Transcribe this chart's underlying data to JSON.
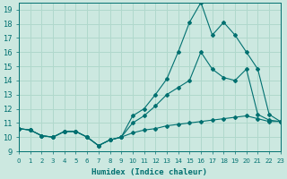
{
  "xlabel": "Humidex (Indice chaleur)",
  "xlim": [
    0,
    23
  ],
  "ylim": [
    9,
    19.5
  ],
  "yticks": [
    9,
    10,
    11,
    12,
    13,
    14,
    15,
    16,
    17,
    18,
    19
  ],
  "xticks": [
    0,
    1,
    2,
    3,
    4,
    5,
    6,
    7,
    8,
    9,
    10,
    11,
    12,
    13,
    14,
    15,
    16,
    17,
    18,
    19,
    20,
    21,
    22,
    23
  ],
  "bg_color": "#cce8e0",
  "line_color": "#007070",
  "grid_color": "#b0d8cc",
  "line1_x": [
    0,
    1,
    2,
    3,
    4,
    5,
    6,
    7,
    8,
    9,
    10,
    11,
    12,
    13,
    14,
    15,
    16,
    17,
    18,
    19,
    20,
    21,
    22,
    23
  ],
  "line1_y": [
    10.6,
    10.5,
    10.1,
    10.0,
    10.4,
    10.4,
    10.0,
    9.4,
    9.8,
    10.0,
    10.3,
    10.5,
    10.6,
    10.8,
    10.9,
    11.0,
    11.1,
    11.2,
    11.3,
    11.4,
    11.5,
    11.3,
    11.1,
    11.1
  ],
  "line2_x": [
    0,
    1,
    2,
    3,
    4,
    5,
    6,
    7,
    8,
    9,
    10,
    11,
    12,
    13,
    14,
    15,
    16,
    17,
    18,
    19,
    20,
    21,
    22,
    23
  ],
  "line2_y": [
    10.6,
    10.5,
    10.1,
    10.0,
    10.4,
    10.4,
    10.0,
    9.4,
    9.8,
    10.0,
    11.0,
    11.5,
    12.2,
    13.0,
    13.5,
    14.0,
    16.0,
    14.8,
    14.2,
    14.0,
    14.8,
    11.6,
    11.2,
    11.1
  ],
  "line3_x": [
    0,
    1,
    2,
    3,
    4,
    5,
    6,
    7,
    8,
    9,
    10,
    11,
    12,
    13,
    14,
    15,
    16,
    17,
    18,
    19,
    20,
    21,
    22,
    23
  ],
  "line3_y": [
    10.6,
    10.5,
    10.1,
    10.0,
    10.4,
    10.4,
    10.0,
    9.4,
    9.8,
    10.0,
    11.5,
    12.0,
    13.0,
    14.1,
    16.0,
    18.1,
    19.5,
    17.2,
    18.1,
    17.2,
    16.0,
    14.8,
    11.6,
    11.1
  ]
}
